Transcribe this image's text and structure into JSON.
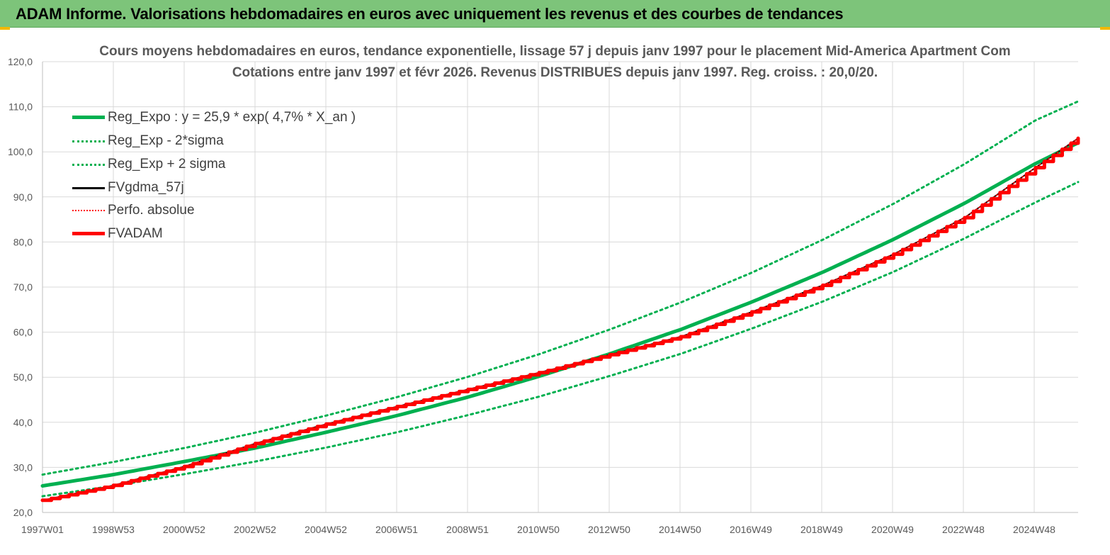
{
  "page_title": "ADAM Informe. Valorisations hebdomadaires en euros avec uniquement les revenus et des courbes de tendances",
  "colors": {
    "banner": "#7dc47a",
    "trend_green": "#00b050",
    "fvadam_red": "#ff0000",
    "fvgdma_black": "#000000",
    "grid": "#d9d9d9",
    "title_text": "#595959"
  },
  "chart_data": {
    "type": "line",
    "title": "Cours moyens hebdomadaires en euros, tendance exponentielle, lissage 57 j depuis janv 1997  pour le placement Mid-America Apartment Com",
    "subtitle": "Cotations entre janv 1997 et févr 2026. Revenus DISTRIBUES depuis janv 1997. Reg. croiss. : 20,0/20.",
    "xlabel": "",
    "ylabel": "",
    "ylim": [
      20,
      120
    ],
    "yticks": [
      "20,0",
      "30,0",
      "40,0",
      "50,0",
      "60,0",
      "70,0",
      "80,0",
      "90,0",
      "100,0",
      "110,0",
      "120,0"
    ],
    "xticks": [
      "1997W01",
      "1998W53",
      "2000W52",
      "2002W52",
      "2004W52",
      "2006W51",
      "2008W51",
      "2010W50",
      "2012W50",
      "2014W50",
      "2016W49",
      "2018W49",
      "2020W49",
      "2022W48",
      "2024W48"
    ],
    "x_range": [
      1997.0,
      2026.2
    ],
    "grid": true,
    "legend_position": "top-left",
    "x": [
      1997.0,
      1999.0,
      2001.0,
      2003.0,
      2005.0,
      2007.0,
      2009.0,
      2011.0,
      2013.0,
      2015.0,
      2017.0,
      2019.0,
      2021.0,
      2023.0,
      2025.0,
      2026.2
    ],
    "series": [
      {
        "name": "Reg_Expo : y = 25,9 * exp( 4,7% *  X_an )",
        "style": "solid-thick",
        "color": "#00b050",
        "values": [
          25.9,
          28.4,
          31.3,
          34.3,
          37.8,
          41.5,
          45.6,
          50.2,
          55.2,
          60.6,
          66.7,
          73.3,
          80.6,
          88.6,
          97.4,
          102.0
        ]
      },
      {
        "name": "Reg_Exp - 2*sigma",
        "style": "dotted",
        "color": "#00b050",
        "values": [
          23.6,
          25.9,
          28.5,
          31.3,
          34.4,
          37.8,
          41.6,
          45.7,
          50.3,
          55.2,
          60.8,
          66.8,
          73.4,
          80.8,
          88.8,
          93.3
        ]
      },
      {
        "name": "Reg_Exp + 2 sigma",
        "style": "dotted",
        "color": "#00b050",
        "values": [
          28.4,
          31.2,
          34.3,
          37.7,
          41.5,
          45.6,
          50.1,
          55.1,
          60.6,
          66.6,
          73.2,
          80.5,
          88.5,
          97.3,
          107.0,
          111.2
        ]
      },
      {
        "name": "FVgdma_57j",
        "style": "solid",
        "color": "#000000",
        "values": [
          22.7,
          26.0,
          30.2,
          35.3,
          39.6,
          43.5,
          47.3,
          51.0,
          55.0,
          59.0,
          64.5,
          70.4,
          77.3,
          85.4,
          96.5,
          103.0
        ]
      },
      {
        "name": "Perfo. absolue",
        "style": "dotted-thin",
        "color": "#ff0000",
        "values": [
          22.7,
          26.0,
          30.2,
          35.3,
          39.6,
          43.5,
          47.3,
          51.0,
          55.0,
          59.0,
          64.5,
          70.4,
          77.3,
          85.4,
          96.5,
          103.0
        ]
      },
      {
        "name": "FVADAM",
        "style": "solid-thick-stepped",
        "color": "#ff0000",
        "values": [
          22.7,
          26.0,
          30.2,
          35.3,
          39.6,
          43.5,
          47.3,
          51.0,
          55.0,
          59.0,
          64.5,
          70.4,
          77.3,
          85.4,
          96.5,
          103.0
        ]
      }
    ]
  }
}
